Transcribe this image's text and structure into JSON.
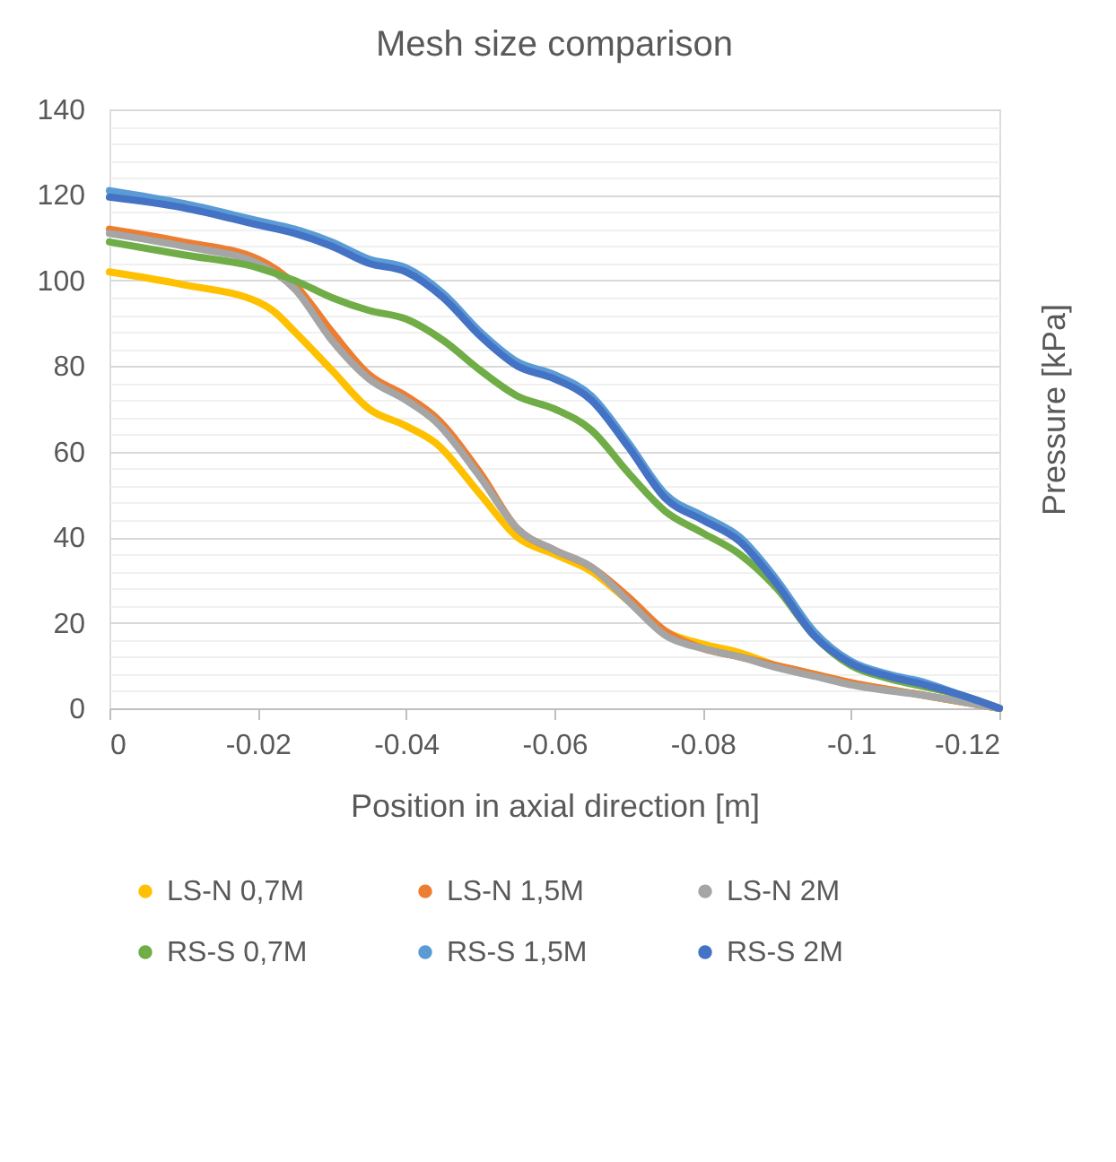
{
  "chart_data": {
    "type": "line",
    "title": "Mesh size comparison",
    "xlabel": "Position in axial direction [m]",
    "ylabel": "Pressure [kPa]",
    "xlim": [
      0,
      -0.12
    ],
    "xticks": [
      0,
      -0.02,
      -0.04,
      -0.06,
      -0.08,
      -0.1,
      -0.12
    ],
    "ylim": [
      0,
      140
    ],
    "yticks": [
      0,
      {
        "value": 4,
        "label": null
      },
      {
        "value": 8,
        "label": null
      },
      {
        "value": 12,
        "label": null
      },
      {
        "value": 16,
        "label": null
      },
      20,
      {
        "value": 24,
        "label": null
      },
      {
        "value": 28,
        "label": null
      },
      {
        "value": 32,
        "label": null
      },
      {
        "value": 36,
        "label": null
      },
      40,
      {
        "value": 44,
        "label": null
      },
      {
        "value": 48,
        "label": null
      },
      {
        "value": 52,
        "label": null
      },
      {
        "value": 56,
        "label": null
      },
      60,
      {
        "value": 64,
        "label": null
      },
      {
        "value": 68,
        "label": null
      },
      {
        "value": 72,
        "label": null
      },
      {
        "value": 76,
        "label": null
      },
      80,
      {
        "value": 84,
        "label": null
      },
      {
        "value": 88,
        "label": null
      },
      {
        "value": 92,
        "label": null
      },
      {
        "value": 96,
        "label": null
      },
      100,
      {
        "value": 104,
        "label": null
      },
      {
        "value": 108,
        "label": null
      },
      {
        "value": 112,
        "label": null
      },
      {
        "value": 116,
        "label": null
      },
      120,
      {
        "value": 124,
        "label": null
      },
      {
        "value": 128,
        "label": null
      },
      {
        "value": 132,
        "label": null
      },
      {
        "value": 136,
        "label": null
      },
      140
    ],
    "grid": "y",
    "legend": "bottom",
    "marker": "none",
    "line_style": "solid",
    "series": [
      {
        "name": "LS-N 0,7M",
        "color": "#ffc000",
        "x": [
          0,
          -0.01,
          -0.02,
          -0.022,
          -0.025,
          -0.03,
          -0.035,
          -0.04,
          -0.044,
          -0.05,
          -0.055,
          -0.06,
          -0.065,
          -0.07,
          -0.075,
          -0.08,
          -0.085,
          -0.09,
          -0.095,
          -0.1,
          -0.11,
          -0.12
        ],
        "values": [
          102,
          99,
          95,
          93,
          88,
          79,
          70,
          66,
          62,
          50,
          40,
          36,
          32,
          25,
          18,
          15,
          13,
          10,
          8,
          6,
          3,
          0
        ]
      },
      {
        "name": "LS-N 1,5M",
        "color": "#ed7d31",
        "x": [
          0,
          -0.01,
          -0.02,
          -0.025,
          -0.03,
          -0.035,
          -0.04,
          -0.044,
          -0.05,
          -0.055,
          -0.06,
          -0.065,
          -0.07,
          -0.075,
          -0.08,
          -0.085,
          -0.09,
          -0.095,
          -0.1,
          -0.11,
          -0.12
        ],
        "values": [
          112,
          109,
          105,
          99,
          88,
          78,
          73,
          68,
          55,
          42,
          37,
          33,
          26,
          18,
          14,
          12,
          10,
          8,
          6,
          3,
          0
        ]
      },
      {
        "name": "LS-N 2M",
        "color": "#a5a5a5",
        "x": [
          0,
          -0.01,
          -0.02,
          -0.025,
          -0.03,
          -0.035,
          -0.04,
          -0.044,
          -0.05,
          -0.055,
          -0.06,
          -0.065,
          -0.07,
          -0.075,
          -0.08,
          -0.085,
          -0.09,
          -0.095,
          -0.1,
          -0.11,
          -0.12
        ],
        "values": [
          111,
          108,
          104,
          98,
          86,
          77,
          72,
          67,
          54,
          42,
          37,
          33,
          25,
          17,
          14,
          12,
          9.5,
          7.5,
          5.5,
          3,
          0
        ]
      },
      {
        "name": "RS-S 0,7M",
        "color": "#70ad47",
        "x": [
          0,
          -0.01,
          -0.02,
          -0.025,
          -0.03,
          -0.035,
          -0.04,
          -0.045,
          -0.05,
          -0.055,
          -0.06,
          -0.065,
          -0.07,
          -0.075,
          -0.08,
          -0.085,
          -0.09,
          -0.095,
          -0.1,
          -0.105,
          -0.11,
          -0.115,
          -0.12
        ],
        "values": [
          109,
          106,
          103,
          100,
          96,
          93,
          91,
          86,
          79,
          73,
          70,
          65,
          55,
          46,
          41,
          36,
          28,
          17,
          10,
          7,
          5,
          3,
          0
        ]
      },
      {
        "name": "RS-S 1,5M",
        "color": "#5b9bd5",
        "x": [
          0,
          -0.01,
          -0.02,
          -0.025,
          -0.03,
          -0.035,
          -0.04,
          -0.045,
          -0.05,
          -0.055,
          -0.06,
          -0.065,
          -0.07,
          -0.075,
          -0.08,
          -0.085,
          -0.09,
          -0.095,
          -0.1,
          -0.105,
          -0.11,
          -0.115,
          -0.12
        ],
        "values": [
          121,
          118,
          114,
          112,
          109,
          105,
          103,
          97,
          88,
          81,
          78,
          73,
          62,
          50,
          45,
          40,
          30,
          18,
          11,
          8,
          6,
          3,
          0
        ]
      },
      {
        "name": "RS-S 2M",
        "color": "#4472c4",
        "x": [
          0,
          -0.01,
          -0.02,
          -0.025,
          -0.03,
          -0.035,
          -0.04,
          -0.045,
          -0.05,
          -0.055,
          -0.06,
          -0.065,
          -0.07,
          -0.075,
          -0.08,
          -0.085,
          -0.09,
          -0.095,
          -0.1,
          -0.105,
          -0.11,
          -0.115,
          -0.12
        ],
        "values": [
          119.5,
          117,
          113,
          111,
          108,
          104,
          102,
          96,
          87,
          80,
          77,
          72,
          61,
          49,
          44,
          39,
          29,
          17,
          10.5,
          7.5,
          5.5,
          3,
          0
        ]
      }
    ]
  }
}
